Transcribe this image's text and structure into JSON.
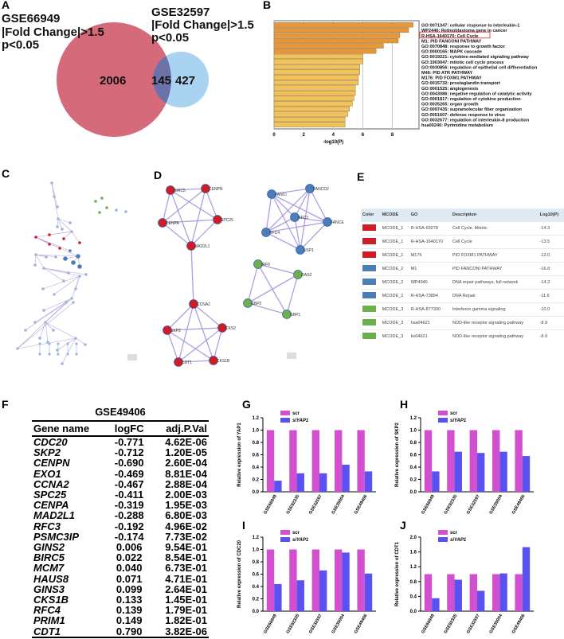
{
  "panels": {
    "a": "A",
    "b": "B",
    "c": "C",
    "d": "D",
    "e": "E",
    "f": "F",
    "g": "G",
    "h": "H",
    "i": "I",
    "j": "J"
  },
  "venn": {
    "left": {
      "title": "GSE66949",
      "line2": "|Fold Change|>1.5",
      "line3": "p<0.05",
      "count": "2006",
      "color": "#d46a7a"
    },
    "right": {
      "title": "GSE32597",
      "line2": "|Fold Change|>1.5",
      "line3": "p<0.05",
      "count": "427",
      "color": "#8ec4ee"
    },
    "overlap": "145"
  },
  "chart_data": [
    {
      "type": "bar",
      "id": "B",
      "title": "",
      "xlabel": "-log10(P)",
      "xlim": [
        0,
        9.8
      ],
      "xticks": [
        0,
        2,
        4,
        6,
        8
      ],
      "orientation": "horizontal",
      "categories": [
        "GO:0071347: cellular response to interleukin-1",
        "WP2446: Retinoblastoma gene in cancer",
        "R-HSA-1640170: Cell Cycle",
        "M1: PID FANCONI PATHWAY",
        "GO:0070848: response to growth factor",
        "GO:0000165: MAPK cascade",
        "GO:0019221: cytokine-mediated signaling pathway",
        "GO:1903047: mitotic cell cycle process",
        "GO:0030856: regulation of epithelial cell differentiation",
        "M46: PID ATR PATHWAY",
        "M176: PID FOXM1 PATHWAY",
        "GO:0015732: prostaglandin transport",
        "GO:0001525: angiogenesis",
        "GO:0043086: negative regulation of catalytic activity",
        "GO:0001817: regulation of cytokine production",
        "GO:0035265: organ growth",
        "GO:0097435: supramolecular fiber organization",
        "GO:0051607: defense response to virus",
        "GO:0032677: regulation of interleukin-8 production",
        "hsa00240: Pyrimidine metabolism"
      ],
      "values": [
        9.4,
        9.1,
        8.5,
        8.4,
        7.4,
        6.9,
        6.0,
        6.0,
        5.8,
        5.8,
        5.7,
        5.7,
        5.5,
        5.5,
        5.4,
        5.3,
        5.1,
        5.0,
        4.8,
        4.8
      ],
      "highlight_index": 2
    },
    {
      "type": "bar",
      "id": "G",
      "ylabel": "Relative expression of YAP1",
      "ylim": [
        0,
        1.2
      ],
      "yticks": [
        "0.0",
        "0.2",
        "0.4",
        "0.6",
        "0.8",
        "1.0",
        "1.2"
      ],
      "categories": [
        "GSE66949",
        "GSE92335",
        "GSE32597",
        "GSE35004",
        "GSE49406"
      ],
      "series": [
        {
          "name": "scr",
          "values": [
            1,
            1,
            1,
            1,
            1
          ],
          "color": "#d24fd0"
        },
        {
          "name": "siYAP1",
          "values": [
            0.18,
            0.3,
            0.3,
            0.44,
            0.33
          ],
          "color": "#5a52f0"
        }
      ]
    },
    {
      "type": "bar",
      "id": "H",
      "ylabel": "Relative expression of SKP2",
      "ylim": [
        0,
        1.2
      ],
      "yticks": [
        "0.0",
        "0.2",
        "0.4",
        "0.6",
        "0.8",
        "1.0",
        "1.2"
      ],
      "categories": [
        "GSE66949",
        "GSE92335",
        "GSE32597",
        "GSE35004",
        "GSE49406"
      ],
      "series": [
        {
          "name": "scr",
          "values": [
            1,
            1,
            1,
            1,
            1
          ],
          "color": "#d24fd0"
        },
        {
          "name": "siYAP1",
          "values": [
            0.33,
            0.65,
            0.63,
            0.65,
            0.58
          ],
          "color": "#5a52f0"
        }
      ]
    },
    {
      "type": "bar",
      "id": "I",
      "ylabel": "Relative expression of CDC20",
      "ylim": [
        0,
        1.2
      ],
      "yticks": [
        "0.0",
        "0.2",
        "0.4",
        "0.6",
        "0.8",
        "1.0",
        "1.2"
      ],
      "categories": [
        "GSE66949",
        "GSE92335",
        "GSE32597",
        "GSE35004",
        "GSE49406"
      ],
      "series": [
        {
          "name": "scr",
          "values": [
            1,
            1,
            1,
            1,
            1
          ],
          "color": "#d24fd0"
        },
        {
          "name": "siYAP1",
          "values": [
            0.44,
            0.5,
            0.66,
            0.95,
            0.61
          ],
          "color": "#5a52f0"
        }
      ]
    },
    {
      "type": "bar",
      "id": "J",
      "ylabel": "Relative expression of CDT1",
      "ylim": [
        0,
        2.0
      ],
      "yticks": [
        "0.0",
        "0.4",
        "0.8",
        "1.2",
        "1.6",
        "2.0"
      ],
      "categories": [
        "GSE66949",
        "GSE92335",
        "GSE32597",
        "GSE35004",
        "GSE49406"
      ],
      "series": [
        {
          "name": "scr",
          "values": [
            1,
            1,
            1,
            1,
            1
          ],
          "color": "#d24fd0"
        },
        {
          "name": "siYAP1",
          "values": [
            0.35,
            0.85,
            0.55,
            1.02,
            1.73
          ],
          "color": "#5a52f0"
        }
      ]
    }
  ],
  "network": {
    "nodes": [
      {
        "label": "BIRC5",
        "group": 1
      },
      {
        "label": "CENPN",
        "group": 1
      },
      {
        "label": "CENPA",
        "group": 1
      },
      {
        "label": "SPC25",
        "group": 1
      },
      {
        "label": "MAD2L1",
        "group": 1
      },
      {
        "label": "CCNA2",
        "group": 1
      },
      {
        "label": "SKP2",
        "group": 1
      },
      {
        "label": "CKS2",
        "group": 1
      },
      {
        "label": "CDT1",
        "group": 1
      },
      {
        "label": "CKS1B",
        "group": 1
      },
      {
        "label": "FANCI",
        "group": 2
      },
      {
        "label": "FANCD2",
        "group": 2
      },
      {
        "label": "RFC3",
        "group": 2
      },
      {
        "label": "FANCE",
        "group": 2
      },
      {
        "label": "RFC4",
        "group": 2
      },
      {
        "label": "USP1",
        "group": 2
      },
      {
        "label": "IRF9",
        "group": 3
      },
      {
        "label": "OAS2",
        "group": 3
      },
      {
        "label": "GBP2",
        "group": 3
      },
      {
        "label": "GBP1",
        "group": 3
      }
    ],
    "group_colors": {
      "1": "#d01c24",
      "2": "#4a7ebb",
      "3": "#6ab04c"
    }
  },
  "mcode_table": {
    "headers": [
      "Color",
      "MCODE",
      "GO",
      "Description",
      "Log10(P)"
    ],
    "rows": [
      {
        "color": "#d01c24",
        "mcode": "MCODE_1",
        "go": "R-HSA-69278",
        "desc": "Cell Cycle, Mitotic",
        "logp": "-14.3"
      },
      {
        "color": "#d01c24",
        "mcode": "MCODE_1",
        "go": "R-HSA-1640170",
        "desc": "Cell Cycle",
        "logp": "-13.5"
      },
      {
        "color": "#d01c24",
        "mcode": "MCODE_1",
        "go": "M176",
        "desc": "PID FOXM1 PATHWAY",
        "logp": "-12.0"
      },
      {
        "color": "#4a7ebb",
        "mcode": "MCODE_2",
        "go": "M1",
        "desc": "PID FANCONI PATHWAY",
        "logp": "-16.8"
      },
      {
        "color": "#4a7ebb",
        "mcode": "MCODE_2",
        "go": "WP4946",
        "desc": "DNA repair pathways, full network",
        "logp": "-14.3"
      },
      {
        "color": "#4a7ebb",
        "mcode": "MCODE_2",
        "go": "R-HSA-73894",
        "desc": "DNA Repair",
        "logp": "-11.6"
      },
      {
        "color": "#6ab04c",
        "mcode": "MCODE_3",
        "go": "R-HSA-877300",
        "desc": "Interferon gamma signaling",
        "logp": "-10.0"
      },
      {
        "color": "#6ab04c",
        "mcode": "MCODE_3",
        "go": "hsa04621",
        "desc": "NOD-like receptor signaling pathway",
        "logp": "-8.9"
      },
      {
        "color": "#6ab04c",
        "mcode": "MCODE_3",
        "go": "ko04621",
        "desc": "NOD-like receptor signaling pathway",
        "logp": "-8.9"
      }
    ]
  },
  "gene_table": {
    "title": "GSE49406",
    "headers": [
      "Gene name",
      "logFC",
      "adj.P.Val"
    ],
    "rows": [
      [
        "CDC20",
        "-0.771",
        "4.62E-06"
      ],
      [
        "SKP2",
        "-0.712",
        "1.20E-05"
      ],
      [
        "CENPN",
        "-0.690",
        "2.60E-04"
      ],
      [
        "EXO1",
        "-0.469",
        "8.81E-04"
      ],
      [
        "CCNA2",
        "-0.467",
        "2.88E-04"
      ],
      [
        "SPC25",
        "-0.411",
        "2.00E-03"
      ],
      [
        "CENPA",
        "-0.319",
        "1.95E-03"
      ],
      [
        "MAD2L1",
        "-0.288",
        "6.80E-03"
      ],
      [
        "RFC3",
        "-0.192",
        "4.96E-02"
      ],
      [
        "PSMC3IP",
        "-0.174",
        "7.73E-02"
      ],
      [
        "GINS2",
        "0.006",
        "9.54E-01"
      ],
      [
        "BIRC5",
        "0.022",
        "8.54E-01"
      ],
      [
        "MCM7",
        "0.040",
        "6.73E-01"
      ],
      [
        "HAUS8",
        "0.071",
        "4.71E-01"
      ],
      [
        "GINS3",
        "0.099",
        "2.64E-01"
      ],
      [
        "CKS1B",
        "0.133",
        "1.45E-01"
      ],
      [
        "RFC4",
        "0.139",
        "1.79E-01"
      ],
      [
        "PRIM1",
        "0.149",
        "1.82E-01"
      ],
      [
        "CDT1",
        "0.790",
        "3.82E-06"
      ]
    ]
  }
}
